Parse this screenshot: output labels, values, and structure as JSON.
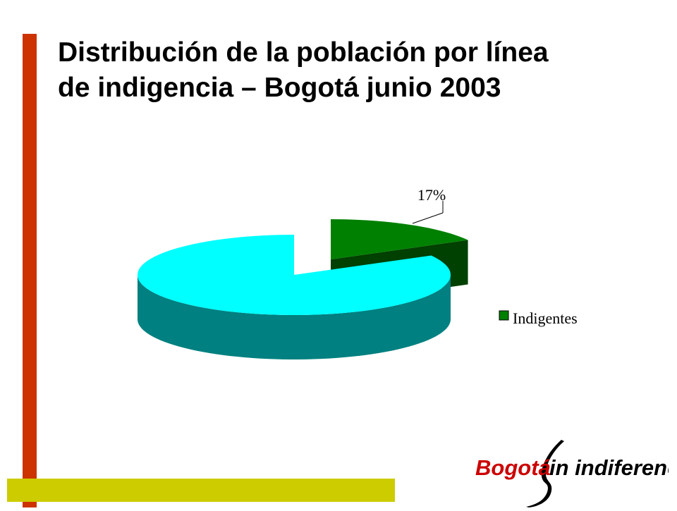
{
  "slide": {
    "title_line1": "Distribución de la población por línea",
    "title_line2": "de indigencia – Bogotá junio 2003"
  },
  "colors": {
    "accent_vertical": "#cc3300",
    "accent_horizontal": "#cccc00",
    "indigentes_top": "#008000",
    "indigentes_side": "#004000",
    "other_top": "#00ffff",
    "other_side": "#008080",
    "logo_red": "#cc0000"
  },
  "chart_data": {
    "type": "pie",
    "style": "3d-exploded",
    "slices": [
      {
        "name": "Indigentes",
        "value": 17,
        "label": "17%",
        "exploded": true
      },
      {
        "value": 83,
        "label": ""
      }
    ],
    "legend": {
      "entries": [
        "Indigentes"
      ],
      "placement": "right"
    }
  },
  "logo": {
    "part1": "Bogotá",
    "part2": "in indiferencia"
  }
}
